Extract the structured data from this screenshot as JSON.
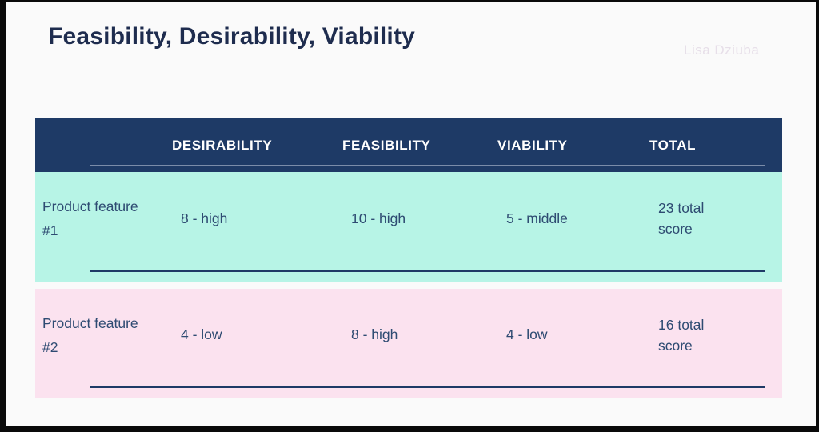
{
  "slide": {
    "title": "Feasibility, Desirability, Viability",
    "watermark": "Lisa Dziuba"
  },
  "table": {
    "columns": [
      "DESIRABILITY",
      "FEASIBILITY",
      "VIABILITY",
      "TOTAL"
    ],
    "rows": [
      {
        "label": "Product feature #1",
        "desirability": "8 - high",
        "feasibility": "10 - high",
        "viability": "5 - middle",
        "total": "23 total score"
      },
      {
        "label": "Product feature #2",
        "desirability": "4 - low",
        "feasibility": "8 - high",
        "viability": "4 - low",
        "total": "16 total score"
      }
    ]
  },
  "colors": {
    "header_bg": "#1e3a66",
    "row1_bg": "#b7f4e6",
    "row2_bg": "#fbe2ef",
    "title_text": "#1e2c4e",
    "cell_text": "#2e4b72",
    "page_bg": "#fafafa",
    "frame": "#0a0a0a"
  }
}
